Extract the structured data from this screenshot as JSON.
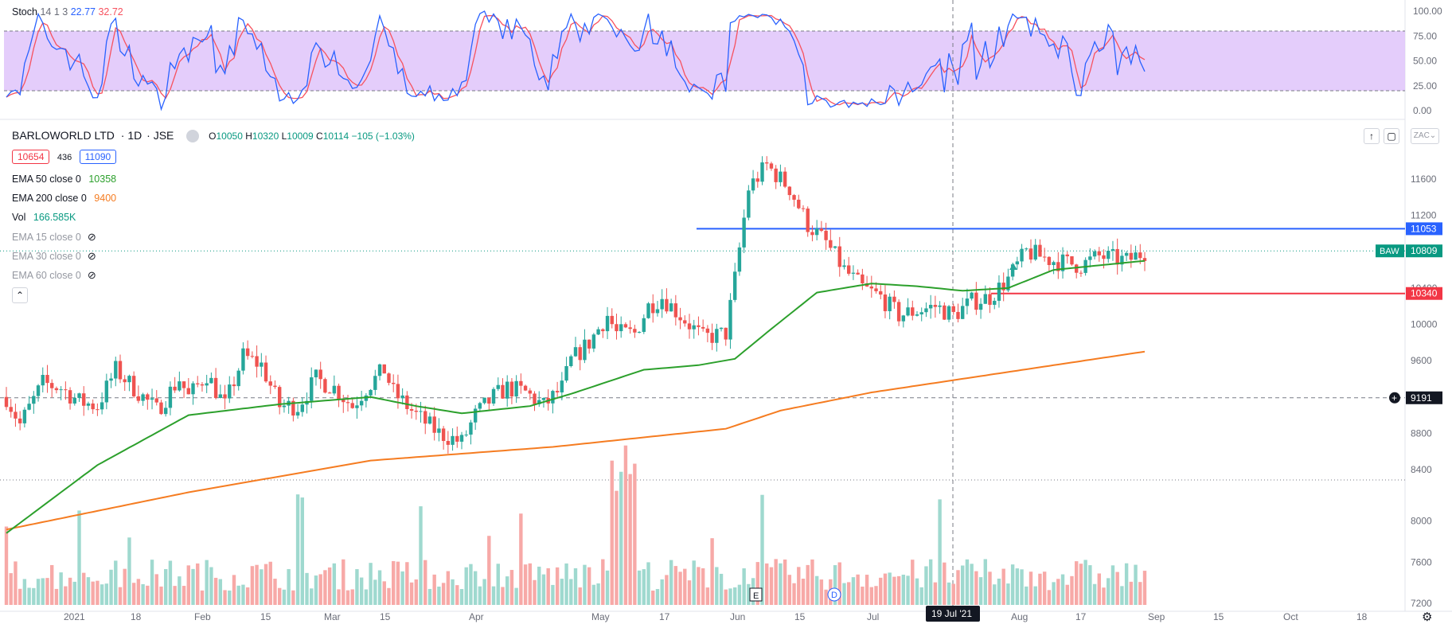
{
  "stoch": {
    "label": "Stoch",
    "params": "14 1 3",
    "k": "22.77",
    "d": "32.72",
    "k_color": "#2962ff",
    "d_color": "#f7525f",
    "axis": [
      "100.00",
      "75.00",
      "50.00",
      "25.00",
      "0.00"
    ],
    "upper": 80,
    "lower": 20,
    "band_color": "#e1c8fb"
  },
  "symbol": {
    "name": "BARLOWORLD LTD",
    "interval": "1D",
    "exchange": "JSE",
    "o_label": "O",
    "o": "10050",
    "h_label": "H",
    "h": "10320",
    "l_label": "L",
    "l": "10009",
    "c_label": "C",
    "c": "10114",
    "change": "−105 (−1.03%)"
  },
  "bidask": {
    "bid": "10654",
    "spread": "436",
    "ask": "11090"
  },
  "indicators": [
    {
      "label": "EMA 50 close 0",
      "value": "10358",
      "color": "#2ca02c",
      "visible": true
    },
    {
      "label": "EMA 200 close 0",
      "value": "9400",
      "color": "#f57c21",
      "visible": true
    },
    {
      "label": "Vol",
      "value": "166.585K",
      "color": "#089981",
      "visible": true
    },
    {
      "label": "EMA 15 close 0",
      "value": "",
      "visible": false
    },
    {
      "label": "EMA 30 close 0",
      "value": "",
      "visible": false
    },
    {
      "label": "EMA 60 close 0",
      "value": "",
      "visible": false
    }
  ],
  "price_axis": [
    "11600",
    "11200",
    "10800",
    "10400",
    "10000",
    "9600",
    "9200",
    "8800",
    "8400",
    "8000",
    "7600",
    "7200"
  ],
  "price_labels": [
    {
      "text": "11053",
      "value": 11053,
      "color": "#2962ff"
    },
    {
      "text": "10809",
      "value": 10809,
      "color": "#089981",
      "tag": "BAW"
    },
    {
      "text": "10340",
      "value": 10340,
      "color": "#f23645"
    },
    {
      "text": "9191",
      "value": 9191,
      "color": "#131722"
    }
  ],
  "scale_button": "ZAC",
  "time_axis": [
    "2021",
    "18",
    "Feb",
    "15",
    "Mar",
    "15",
    "Apr",
    "May",
    "17",
    "Jun",
    "15",
    "Jul",
    "Aug",
    "17",
    "Sep",
    "15",
    "Oct",
    "18"
  ],
  "crosshair_date": "19 Jul '21",
  "events": [
    "E",
    "D"
  ],
  "chart_data": {
    "type": "candlestick",
    "title": "BARLOWORLD LTD · 1D · JSE",
    "ylabel": "ZAC",
    "ylim": [
      8200,
      12100
    ],
    "hlines": [
      {
        "value": 11053,
        "color": "#2962ff"
      },
      {
        "value": 10340,
        "color": "#f23645"
      }
    ],
    "series": [
      {
        "name": "Price",
        "anchors": [
          [
            0,
            9200
          ],
          [
            3,
            8900
          ],
          [
            8,
            9350
          ],
          [
            12,
            9300
          ],
          [
            16,
            9150
          ],
          [
            20,
            9100
          ],
          [
            24,
            9500
          ],
          [
            28,
            9300
          ],
          [
            33,
            9050
          ],
          [
            38,
            9400
          ],
          [
            40,
            9200
          ],
          [
            44,
            9450
          ],
          [
            48,
            9100
          ],
          [
            52,
            9650
          ],
          [
            56,
            9550
          ],
          [
            60,
            9100
          ],
          [
            64,
            9100
          ],
          [
            68,
            9400
          ],
          [
            72,
            9300
          ],
          [
            76,
            9100
          ],
          [
            79,
            9300
          ],
          [
            83,
            9500
          ],
          [
            85,
            9250
          ],
          [
            90,
            9000
          ],
          [
            95,
            8800
          ],
          [
            100,
            8700
          ],
          [
            103,
            9000
          ],
          [
            107,
            9200
          ],
          [
            110,
            9300
          ],
          [
            114,
            9250
          ],
          [
            118,
            9100
          ],
          [
            122,
            9300
          ],
          [
            124,
            9600
          ],
          [
            128,
            9800
          ],
          [
            132,
            10100
          ],
          [
            134,
            9900
          ],
          [
            138,
            9900
          ],
          [
            141,
            10200
          ],
          [
            144,
            10300
          ],
          [
            148,
            10100
          ],
          [
            153,
            9850
          ],
          [
            158,
            9900
          ],
          [
            160,
            10500
          ],
          [
            163,
            11500
          ],
          [
            167,
            11750
          ],
          [
            172,
            11500
          ],
          [
            176,
            11100
          ],
          [
            180,
            10900
          ],
          [
            184,
            10600
          ],
          [
            188,
            10400
          ],
          [
            192,
            10300
          ],
          [
            196,
            10100
          ],
          [
            200,
            10150
          ],
          [
            204,
            10200
          ],
          [
            208,
            10100
          ],
          [
            212,
            10250
          ],
          [
            216,
            10300
          ],
          [
            220,
            10500
          ],
          [
            224,
            10800
          ],
          [
            230,
            10700
          ],
          [
            236,
            10650
          ],
          [
            240,
            10750
          ],
          [
            246,
            10700
          ],
          [
            250,
            10800
          ]
        ],
        "ohlc": "derived from anchors"
      },
      {
        "name": "EMA 50",
        "anchors": [
          [
            0,
            7700
          ],
          [
            20,
            8450
          ],
          [
            40,
            9000
          ],
          [
            60,
            9120
          ],
          [
            80,
            9200
          ],
          [
            90,
            9100
          ],
          [
            100,
            9020
          ],
          [
            115,
            9100
          ],
          [
            125,
            9250
          ],
          [
            140,
            9500
          ],
          [
            152,
            9550
          ],
          [
            160,
            9620
          ],
          [
            168,
            9950
          ],
          [
            178,
            10350
          ],
          [
            190,
            10450
          ],
          [
            200,
            10420
          ],
          [
            210,
            10370
          ],
          [
            220,
            10400
          ],
          [
            230,
            10600
          ],
          [
            250,
            10700
          ]
        ]
      },
      {
        "name": "EMA 200",
        "anchors": [
          [
            0,
            7740
          ],
          [
            40,
            8150
          ],
          [
            80,
            8500
          ],
          [
            120,
            8650
          ],
          [
            158,
            8850
          ],
          [
            170,
            9050
          ],
          [
            190,
            9250
          ],
          [
            210,
            9400
          ],
          [
            230,
            9550
          ],
          [
            250,
            9700
          ]
        ]
      },
      {
        "name": "Volume",
        "note": "bars at bottom, colored by candle direction"
      }
    ]
  }
}
